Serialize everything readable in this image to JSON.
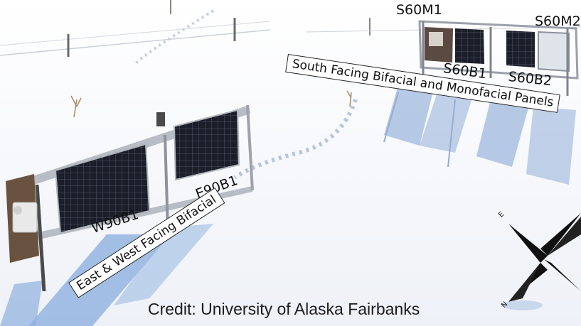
{
  "labels": {
    "s60m1": "S60M1",
    "s60m2": "S60M2",
    "s60b1": "S60B1",
    "s60b2": "S60B2",
    "south_banner": "South Facing Bifacial and Monofacial Panels",
    "w90b1": "W90B1",
    "e90b1": "E90B1",
    "east_west_banner": "East & West Facing Bifacial",
    "compass_e": "E",
    "compass_n": "N"
  },
  "credit": "Credit: University of Alaska Fairbanks",
  "colors": {
    "snow": "#f4f6fa",
    "shadow": "#a9bfe0",
    "panel": "#1b1d26",
    "frame": "#b8bcc4"
  }
}
